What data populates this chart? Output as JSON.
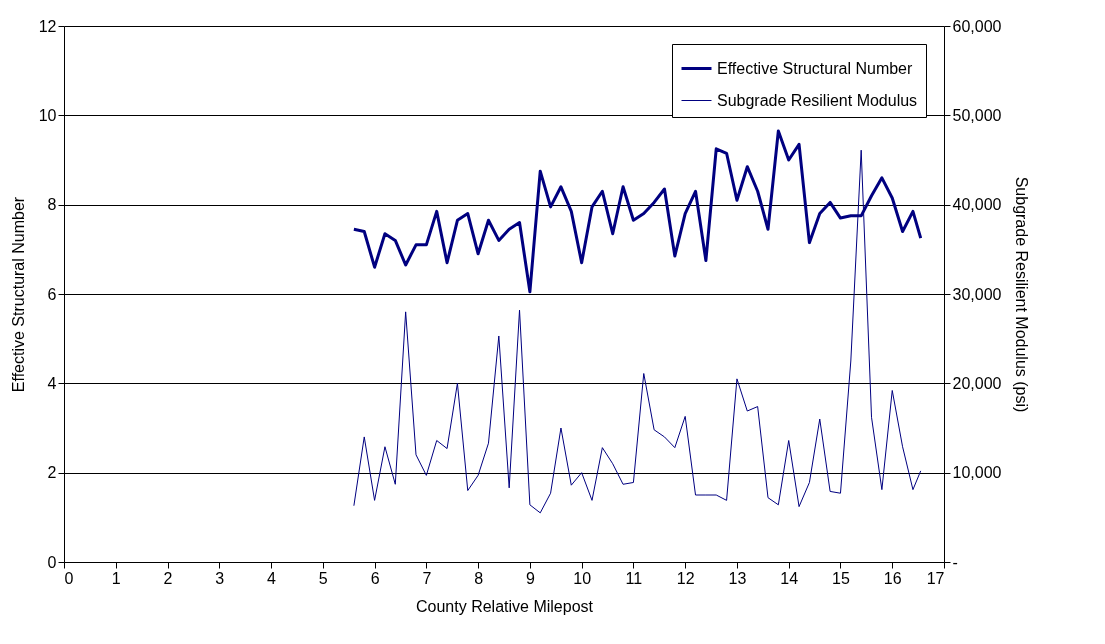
{
  "chart_data": {
    "type": "line",
    "xlabel": "County Relative Milepost",
    "ylabel": "Effective Structural Number",
    "y2label": "Subgrade Resilient Modulus (psi)",
    "x": [
      5.6,
      5.8,
      6.0,
      6.2,
      6.4,
      6.6,
      6.8,
      7.0,
      7.2,
      7.4,
      7.6,
      7.8,
      8.0,
      8.2,
      8.4,
      8.6,
      8.8,
      9.0,
      9.2,
      9.4,
      9.6,
      9.8,
      10.0,
      10.2,
      10.4,
      10.6,
      10.8,
      11.0,
      11.2,
      11.4,
      11.6,
      11.8,
      12.0,
      12.2,
      12.4,
      12.6,
      12.8,
      13.0,
      13.2,
      13.4,
      13.6,
      13.8,
      14.0,
      14.2,
      14.4,
      14.6,
      14.8,
      15.0,
      15.2,
      15.4,
      15.6,
      15.8,
      16.0,
      16.2,
      16.4,
      16.55
    ],
    "series": [
      {
        "name": "Effective Structural Number",
        "color": "#000080",
        "values": [
          7.45,
          7.4,
          6.6,
          7.35,
          7.2,
          6.65,
          7.1,
          7.1,
          7.85,
          6.7,
          7.65,
          7.8,
          6.9,
          7.65,
          7.2,
          7.45,
          7.6,
          6.05,
          8.75,
          7.95,
          8.4,
          7.85,
          6.7,
          7.95,
          8.3,
          7.35,
          8.4,
          7.65,
          7.8,
          8.05,
          8.35,
          6.85,
          7.8,
          8.3,
          6.75,
          9.25,
          9.15,
          8.1,
          8.85,
          8.3,
          7.45,
          9.65,
          9.0,
          9.35,
          7.15,
          7.8,
          8.05,
          7.7,
          7.75,
          7.75,
          8.2,
          8.6,
          8.15,
          7.4,
          7.85,
          7.25
        ]
      },
      {
        "name": "Subgrade Resilient Modulus",
        "color": "#000080",
        "axis": "y2",
        "values": [
          6300,
          14000,
          6900,
          12900,
          8700,
          28000,
          12000,
          9700,
          13600,
          12700,
          20000,
          8000,
          9700,
          13300,
          25300,
          8300,
          28200,
          6400,
          5500,
          7700,
          15000,
          8600,
          10000,
          6900,
          12800,
          11000,
          8700,
          8900,
          21100,
          14800,
          14000,
          12800,
          16300,
          7500,
          7500,
          7500,
          6900,
          20500,
          16900,
          17400,
          7200,
          6400,
          13600,
          6200,
          8900,
          16000,
          7900,
          7700,
          22500,
          46100,
          16200,
          8100,
          19200,
          12900,
          8100,
          10200
        ]
      }
    ],
    "xlim": [
      0,
      17
    ],
    "xticks": [
      0,
      1,
      2,
      3,
      4,
      5,
      6,
      7,
      8,
      9,
      10,
      11,
      12,
      13,
      14,
      15,
      16,
      17
    ],
    "ylim": [
      0,
      12
    ],
    "yticks": [
      0,
      2,
      4,
      6,
      8,
      10,
      12
    ],
    "y2lim": [
      0,
      60000
    ],
    "y2ticks": [
      {
        "value": 0,
        "label": "-"
      },
      {
        "value": 10000,
        "label": "10,000"
      },
      {
        "value": 20000,
        "label": "20,000"
      },
      {
        "value": 30000,
        "label": "30,000"
      },
      {
        "value": 40000,
        "label": "40,000"
      },
      {
        "value": 50000,
        "label": "50,000"
      },
      {
        "value": 60000,
        "label": "60,000"
      }
    ],
    "grid": "y",
    "legend": "top right",
    "marker": "none",
    "line_style": "solid"
  }
}
